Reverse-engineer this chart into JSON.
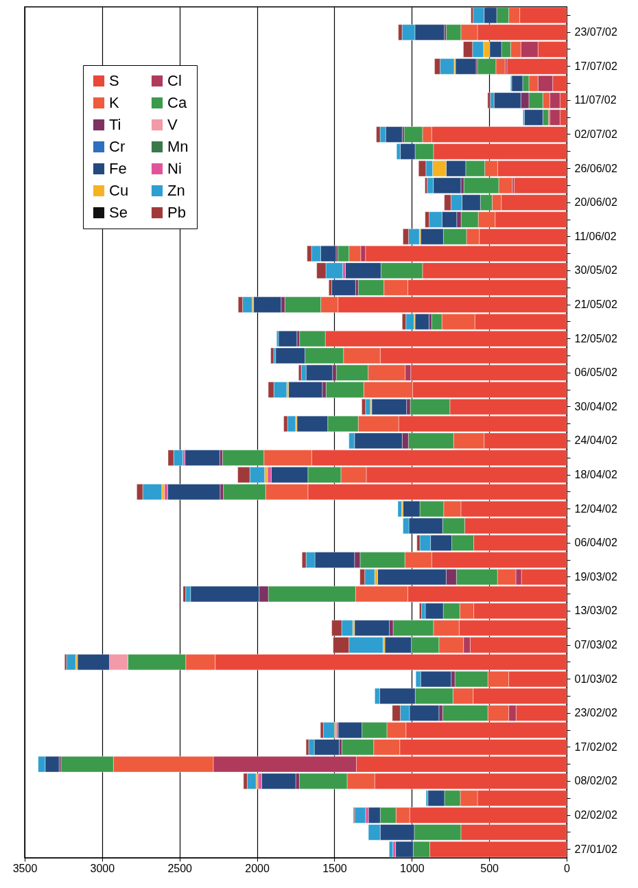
{
  "chart_data": {
    "type": "bar",
    "orientation": "horizontal",
    "stacked": true,
    "grid": "x",
    "legend": "top left",
    "xlim": [
      3500,
      0
    ],
    "xticks": [
      3500,
      3000,
      2500,
      2000,
      1500,
      1000,
      500,
      0
    ],
    "categories": [
      null,
      "23/07/02",
      null,
      "17/07/02",
      null,
      "11/07/02",
      null,
      "02/07/02",
      null,
      "26/06/02",
      null,
      "20/06/02",
      null,
      "11/06/02",
      null,
      "30/05/02",
      null,
      "21/05/02",
      null,
      "12/05/02",
      null,
      "06/05/02",
      null,
      "30/04/02",
      null,
      "24/04/02",
      null,
      "18/04/02",
      null,
      "12/04/02",
      null,
      "06/04/02",
      null,
      "19/03/02",
      null,
      "13/03/02",
      null,
      "07/03/02",
      null,
      "01/03/02",
      null,
      "23/02/02",
      null,
      "17/02/02",
      null,
      "08/02/02",
      null,
      "02/02/02",
      null,
      "27/01/02"
    ],
    "series": [
      {
        "name": "S",
        "color": "#e8473a",
        "values": [
          303,
          576,
          185,
          386,
          90,
          43,
          43,
          872,
          860,
          446,
          339,
          422,
          462,
          564,
          1299,
          931,
          1026,
          1477,
          593,
          1559,
          1204,
          1007,
          995,
          754,
          1085,
          533,
          1647,
          1294,
          1671,
          683,
          659,
          600,
          872,
          292,
          1026,
          600,
          694,
          623,
          2270,
          374,
          604,
          327,
          1038,
          1078,
          1358,
          1240,
          576,
          1014,
          683,
          884
        ]
      },
      {
        "name": "Cl",
        "color": "#b03a5c",
        "values": [
          null,
          null,
          111,
          12,
          95,
          66,
          66,
          null,
          null,
          null,
          12,
          null,
          null,
          null,
          31,
          null,
          null,
          null,
          null,
          null,
          null,
          36,
          null,
          null,
          null,
          null,
          null,
          null,
          null,
          null,
          null,
          null,
          null,
          36,
          null,
          null,
          null,
          43,
          null,
          null,
          null,
          47,
          null,
          null,
          924,
          null,
          null,
          null,
          null,
          null
        ]
      },
      {
        "name": "K",
        "color": "#ee5b3e",
        "values": [
          71,
          107,
          66,
          59,
          59,
          45,
          9,
          59,
          null,
          83,
          88,
          59,
          109,
          83,
          76,
          null,
          154,
          111,
          213,
          null,
          237,
          239,
          315,
          null,
          261,
          197,
          308,
          164,
          273,
          111,
          null,
          null,
          173,
          119,
          337,
          90,
          166,
          159,
          190,
          135,
          130,
          135,
          123,
          168,
          645,
          178,
          111,
          88,
          null,
          null
        ]
      },
      {
        "name": "Ca",
        "color": "#3c9a4c",
        "values": [
          78,
          95,
          59,
          119,
          40,
          90,
          36,
          119,
          119,
          123,
          225,
          76,
          111,
          149,
          71,
          268,
          166,
          232,
          66,
          166,
          249,
          206,
          244,
          256,
          197,
          292,
          268,
          213,
          273,
          154,
          142,
          142,
          289,
          265,
          564,
          107,
          261,
          178,
          374,
          213,
          244,
          292,
          161,
          206,
          339,
          308,
          102,
          102,
          301,
          107
        ]
      },
      {
        "name": "Ti",
        "color": "#7d3262",
        "values": [
          null,
          12,
          null,
          9,
          null,
          52,
          null,
          12,
          null,
          null,
          19,
          null,
          28,
          null,
          12,
          null,
          17,
          24,
          17,
          17,
          null,
          24,
          24,
          24,
          null,
          40,
          17,
          null,
          21,
          null,
          null,
          null,
          36,
          66,
          59,
          null,
          24,
          null,
          null,
          24,
          null,
          24,
          null,
          17,
          12,
          24,
          null,
          null,
          null,
          null
        ]
      },
      {
        "name": "V",
        "color": "#f29aa8",
        "values": [
          null,
          null,
          null,
          null,
          null,
          null,
          null,
          null,
          null,
          null,
          null,
          null,
          null,
          null,
          null,
          null,
          null,
          null,
          null,
          null,
          null,
          null,
          null,
          null,
          null,
          null,
          null,
          null,
          null,
          null,
          null,
          null,
          null,
          null,
          null,
          null,
          null,
          null,
          119,
          null,
          null,
          null,
          null,
          null,
          null,
          null,
          null,
          null,
          null,
          null
        ]
      },
      {
        "name": "Cr",
        "color": "#2e6fc0",
        "values": [
          null,
          null,
          null,
          null,
          null,
          null,
          null,
          null,
          null,
          null,
          null,
          null,
          null,
          null,
          null,
          null,
          null,
          null,
          null,
          null,
          null,
          null,
          null,
          null,
          null,
          null,
          null,
          null,
          null,
          null,
          null,
          null,
          null,
          null,
          null,
          null,
          null,
          null,
          null,
          null,
          null,
          null,
          null,
          null,
          null,
          null,
          null,
          null,
          null,
          null
        ]
      },
      {
        "name": "Mn",
        "color": "#3a7a4a",
        "values": [
          null,
          null,
          null,
          null,
          null,
          null,
          null,
          null,
          null,
          null,
          null,
          null,
          null,
          null,
          null,
          null,
          null,
          null,
          null,
          null,
          null,
          null,
          null,
          null,
          null,
          null,
          null,
          null,
          null,
          null,
          null,
          null,
          null,
          null,
          null,
          null,
          null,
          null,
          null,
          null,
          null,
          null,
          null,
          null,
          null,
          null,
          null,
          null,
          null,
          null
        ]
      },
      {
        "name": "Fe",
        "color": "#24497e",
        "values": [
          81,
          190,
          76,
          133,
          71,
          173,
          119,
          107,
          95,
          126,
          178,
          119,
          95,
          147,
          100,
          230,
          154,
          178,
          90,
          119,
          190,
          171,
          218,
          225,
          199,
          308,
          225,
          237,
          339,
          109,
          218,
          137,
          256,
          443,
          443,
          116,
          225,
          171,
          206,
          197,
          230,
          190,
          154,
          161,
          90,
          220,
          107,
          76,
          220,
          114
        ]
      },
      {
        "name": "Ni",
        "color": "#e0559a",
        "values": [
          null,
          null,
          null,
          null,
          null,
          null,
          null,
          null,
          null,
          null,
          null,
          null,
          null,
          null,
          null,
          17,
          null,
          null,
          null,
          null,
          null,
          null,
          null,
          null,
          null,
          null,
          14,
          24,
          21,
          null,
          null,
          null,
          null,
          null,
          null,
          null,
          null,
          null,
          null,
          null,
          null,
          null,
          12,
          null,
          null,
          24,
          null,
          19,
          null,
          17
        ]
      },
      {
        "name": "Cu",
        "color": "#f5b323",
        "values": [
          null,
          null,
          40,
          9,
          null,
          null,
          null,
          null,
          null,
          88,
          null,
          null,
          null,
          9,
          null,
          null,
          null,
          9,
          7,
          null,
          null,
          null,
          12,
          9,
          9,
          null,
          null,
          19,
          17,
          9,
          null,
          null,
          null,
          19,
          null,
          null,
          12,
          12,
          12,
          null,
          null,
          null,
          12,
          null,
          null,
          12,
          null,
          null,
          null,
          null
        ]
      },
      {
        "name": "Zn",
        "color": "#2e9fd0",
        "values": [
          71,
          83,
          71,
          90,
          7,
          24,
          9,
          36,
          24,
          43,
          40,
          71,
          83,
          69,
          59,
          109,
          null,
          62,
          52,
          12,
          12,
          31,
          83,
          31,
          52,
          36,
          59,
          95,
          123,
          24,
          38,
          69,
          57,
          64,
          31,
          24,
          71,
          220,
          59,
          31,
          31,
          59,
          71,
          36,
          45,
          57,
          12,
          71,
          76,
          24
        ]
      },
      {
        "name": "Se",
        "color": "#111111",
        "values": [
          null,
          null,
          null,
          null,
          null,
          null,
          null,
          null,
          null,
          null,
          null,
          null,
          null,
          null,
          null,
          null,
          null,
          null,
          null,
          null,
          null,
          null,
          null,
          null,
          null,
          null,
          null,
          null,
          null,
          null,
          null,
          null,
          null,
          null,
          null,
          null,
          null,
          null,
          null,
          null,
          null,
          null,
          null,
          null,
          null,
          null,
          null,
          null,
          null,
          null
        ]
      },
      {
        "name": "Pb",
        "color": "#a03a3a",
        "values": [
          14,
          24,
          59,
          36,
          null,
          17,
          null,
          24,
          null,
          47,
          14,
          43,
          26,
          36,
          28,
          59,
          19,
          28,
          24,
          null,
          19,
          17,
          36,
          24,
          24,
          null,
          36,
          78,
          38,
          null,
          null,
          19,
          26,
          31,
          17,
          14,
          64,
          102,
          12,
          null,
          null,
          52,
          19,
          17,
          null,
          24,
          null,
          7,
          null,
          null
        ]
      }
    ]
  }
}
